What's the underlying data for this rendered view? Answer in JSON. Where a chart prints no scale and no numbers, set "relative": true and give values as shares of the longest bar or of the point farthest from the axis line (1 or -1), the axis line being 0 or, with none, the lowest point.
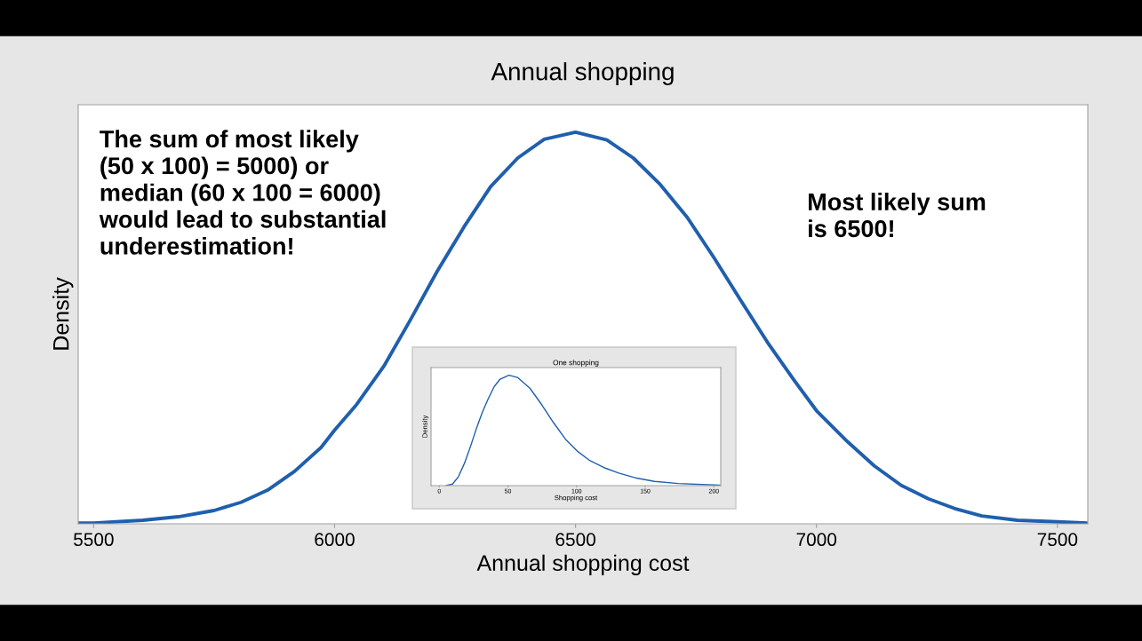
{
  "chart_data": [
    {
      "type": "line",
      "title": "Annual shopping",
      "xlabel": "Annual shopping cost",
      "ylabel": "Density",
      "relative": true,
      "grid": false,
      "marker": "none",
      "line_style": "solid",
      "xlim": [
        5468,
        7563
      ],
      "xticks": [
        5500,
        6000,
        6500,
        7000,
        7500
      ],
      "annotations": [
        "The sum of most likely\n(50 x 100) = 5000) or\nmedian (60 x 100 = 6000)\nwould lead to substantial\nunderestimation!",
        "Most likely sum\nis 6500!"
      ],
      "series": [
        {
          "color": "#1f5fad",
          "x": [
            5468,
            5500,
            5602,
            5676,
            5750,
            5806,
            5861,
            5917,
            5972,
            6000,
            6046,
            6102,
            6157,
            6213,
            6269,
            6324,
            6380,
            6435,
            6500,
            6565,
            6620,
            6676,
            6732,
            6787,
            6843,
            6898,
            6954,
            7000,
            7065,
            7120,
            7176,
            7232,
            7287,
            7343,
            7417,
            7500,
            7563
          ],
          "values": [
            0.002,
            0.002,
            0.009,
            0.018,
            0.034,
            0.055,
            0.086,
            0.134,
            0.195,
            0.239,
            0.305,
            0.402,
            0.52,
            0.645,
            0.759,
            0.861,
            0.934,
            0.982,
            1.0,
            0.98,
            0.934,
            0.866,
            0.782,
            0.68,
            0.57,
            0.464,
            0.366,
            0.289,
            0.209,
            0.148,
            0.098,
            0.064,
            0.039,
            0.02,
            0.009,
            0.005,
            0.002
          ]
        }
      ]
    },
    {
      "type": "line",
      "title": "One shopping",
      "xlabel": "Shopping cost",
      "ylabel": "Density",
      "relative": true,
      "grid": false,
      "marker": "none",
      "line_style": "solid",
      "xlim": [
        -6,
        205
      ],
      "xticks": [
        0,
        50,
        100,
        150,
        200
      ],
      "series": [
        {
          "color": "#1f5fad",
          "x": [
            5,
            9.7,
            14,
            18.4,
            22.7,
            27,
            31.4,
            35.7,
            40,
            44.3,
            50.8,
            57.3,
            66,
            74.6,
            83.2,
            91.9,
            100.5,
            109.2,
            120,
            130.8,
            143.8,
            156.8,
            174,
            195.7,
            204.3
          ],
          "values": [
            0,
            0.014,
            0.082,
            0.204,
            0.353,
            0.516,
            0.666,
            0.788,
            0.897,
            0.965,
            1.0,
            0.978,
            0.883,
            0.734,
            0.571,
            0.421,
            0.313,
            0.231,
            0.163,
            0.114,
            0.068,
            0.038,
            0.019,
            0.008,
            0.005
          ]
        }
      ]
    }
  ]
}
